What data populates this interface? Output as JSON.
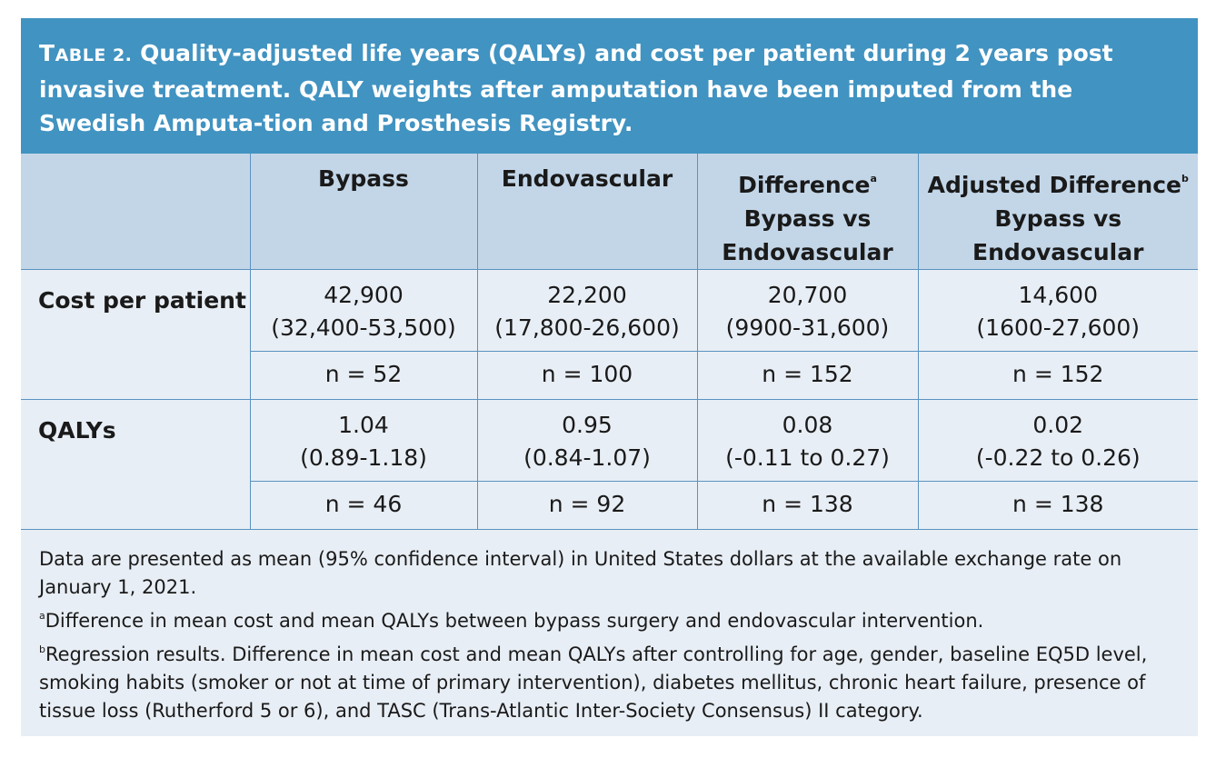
{
  "title": {
    "label_first": "T",
    "label_rest": "ABLE 2.",
    "text": "Quality-adjusted life years (QALYs) and cost per patient during 2 years post invasive treatment. QALY weights after amputation have been imputed from the Swedish Amputa-tion and Prosthesis Registry."
  },
  "columns": {
    "bypass": "Bypass",
    "endovascular": "Endovascular",
    "difference_l1": "Difference",
    "difference_sup": "a",
    "difference_l2": "Bypass vs",
    "difference_l3": "Endovascular",
    "adjusted_l1": "Adjusted Difference",
    "adjusted_sup": "b",
    "adjusted_l2": "Bypass vs",
    "adjusted_l3": "Endovascular"
  },
  "rows": [
    {
      "label": "Cost per patient",
      "values": [
        {
          "mean": "42,900",
          "ci": "(32,400-53,500)"
        },
        {
          "mean": "22,200",
          "ci": "(17,800-26,600)"
        },
        {
          "mean": "20,700",
          "ci": "(9900-31,600)"
        },
        {
          "mean": "14,600",
          "ci": "(1600-27,600)"
        }
      ],
      "n": [
        "n = 52",
        "n = 100",
        "n = 152",
        "n = 152"
      ]
    },
    {
      "label": "QALYs",
      "values": [
        {
          "mean": "1.04",
          "ci": "(0.89-1.18)"
        },
        {
          "mean": "0.95",
          "ci": "(0.84-1.07)"
        },
        {
          "mean": "0.08",
          "ci": "(-0.11 to 0.27)"
        },
        {
          "mean": "0.02",
          "ci": "(-0.22 to 0.26)"
        }
      ],
      "n": [
        "n = 46",
        "n = 92",
        "n = 138",
        "n = 138"
      ]
    }
  ],
  "notes": {
    "main": "Data are presented as mean (95% confidence interval) in United States dollars at the available exchange rate on January 1, 2021.",
    "a_mark": "a",
    "a_text": "Difference in mean cost and mean QALYs between bypass surgery and endovascular intervention.",
    "b_mark": "b",
    "b_text": "Regression results. Difference in mean cost and mean QALYs after controlling for age, gender, baseline EQ5D level, smoking habits (smoker or not at time of primary intervention), diabetes mellitus, chronic heart failure, presence of tissue loss (Rutherford 5 or 6), and TASC (Trans-Atlantic Inter-Society Consensus) II category."
  },
  "colors": {
    "title_bg": "#4193c1",
    "header_bg": "#c3d6e8",
    "body_bg": "#e8eef5",
    "border": "#5a93c0"
  }
}
